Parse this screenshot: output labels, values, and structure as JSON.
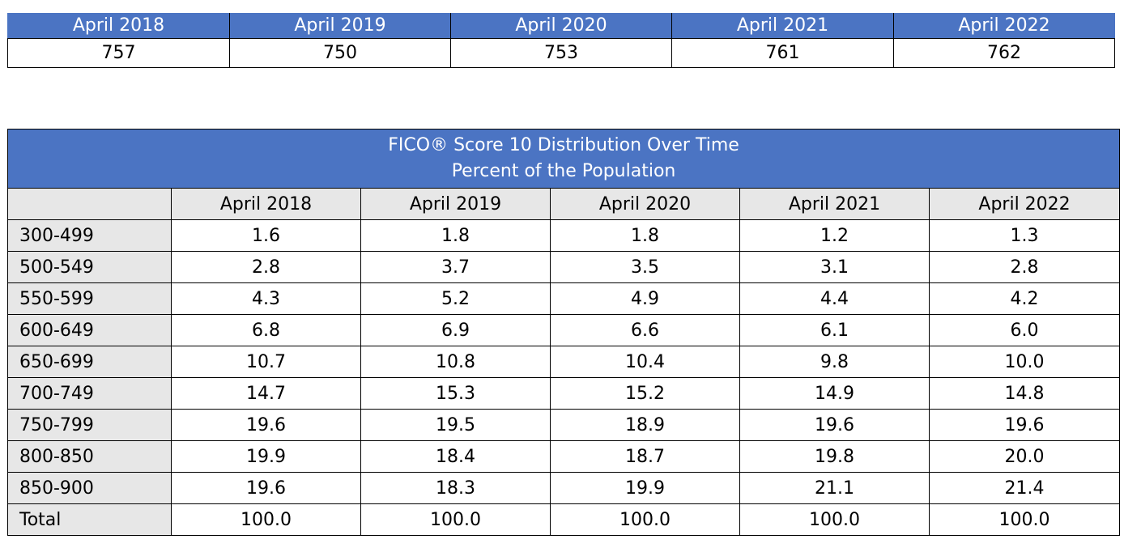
{
  "average_scores": {
    "headers": [
      "April 2018",
      "April 2019",
      "April 2020",
      "April 2021",
      "April 2022"
    ],
    "values": [
      "757",
      "750",
      "753",
      "761",
      "762"
    ]
  },
  "distribution": {
    "title_line1": "FICO® Score 10 Distribution Over Time",
    "title_line2": "Percent of the Population",
    "column_headers": [
      "",
      "April 2018",
      "April 2019",
      "April 2020",
      "April 2021",
      "April 2022"
    ],
    "rows": [
      {
        "label": "300-499",
        "values": [
          "1.6",
          "1.8",
          "1.8",
          "1.2",
          "1.3"
        ]
      },
      {
        "label": "500-549",
        "values": [
          "2.8",
          "3.7",
          "3.5",
          "3.1",
          "2.8"
        ]
      },
      {
        "label": "550-599",
        "values": [
          "4.3",
          "5.2",
          "4.9",
          "4.4",
          "4.2"
        ]
      },
      {
        "label": "600-649",
        "values": [
          "6.8",
          "6.9",
          "6.6",
          "6.1",
          "6.0"
        ]
      },
      {
        "label": "650-699",
        "values": [
          "10.7",
          "10.8",
          "10.4",
          "9.8",
          "10.0"
        ]
      },
      {
        "label": "700-749",
        "values": [
          "14.7",
          "15.3",
          "15.2",
          "14.9",
          "14.8"
        ]
      },
      {
        "label": "750-799",
        "values": [
          "19.6",
          "19.5",
          "18.9",
          "19.6",
          "19.6"
        ]
      },
      {
        "label": "800-850",
        "values": [
          "19.9",
          "18.4",
          "18.7",
          "19.8",
          "20.0"
        ]
      },
      {
        "label": "850-900",
        "values": [
          "19.6",
          "18.3",
          "19.9",
          "21.1",
          "21.4"
        ]
      },
      {
        "label": "Total",
        "values": [
          "100.0",
          "100.0",
          "100.0",
          "100.0",
          "100.0"
        ]
      }
    ]
  },
  "colors": {
    "header_blue": "#4b74c3",
    "label_gray": "#e7e7e7"
  }
}
